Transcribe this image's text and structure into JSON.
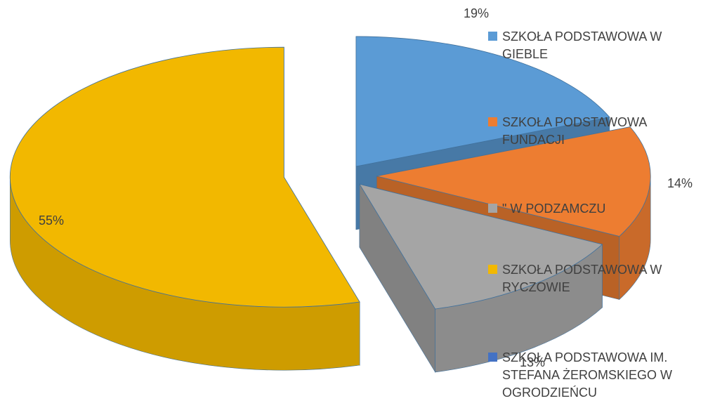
{
  "chart_data": {
    "type": "pie",
    "three_d": true,
    "exploded": true,
    "categories": [
      "SZKOŁA PODSTAWOWA W GIEBLE",
      "SZKOŁA PODSTAWOWA FUNDACJI",
      "\" W PODZAMCZU",
      "SZKOŁA PODSTAWOWA W RYCZOWIE",
      "SZKOŁA PODSTAWOWA IM. STEFANA ŻEROMSKIEGO W OGRODZIEŃCU"
    ],
    "values": [
      19,
      14,
      13,
      55,
      null
    ],
    "value_labels": [
      "19%",
      "14%",
      "13%",
      "55%",
      null
    ],
    "colors": [
      "#5b9bd5",
      "#ed7d31",
      "#a5a5a5",
      "#f2b800",
      "#4472c4"
    ],
    "legend": "right"
  }
}
